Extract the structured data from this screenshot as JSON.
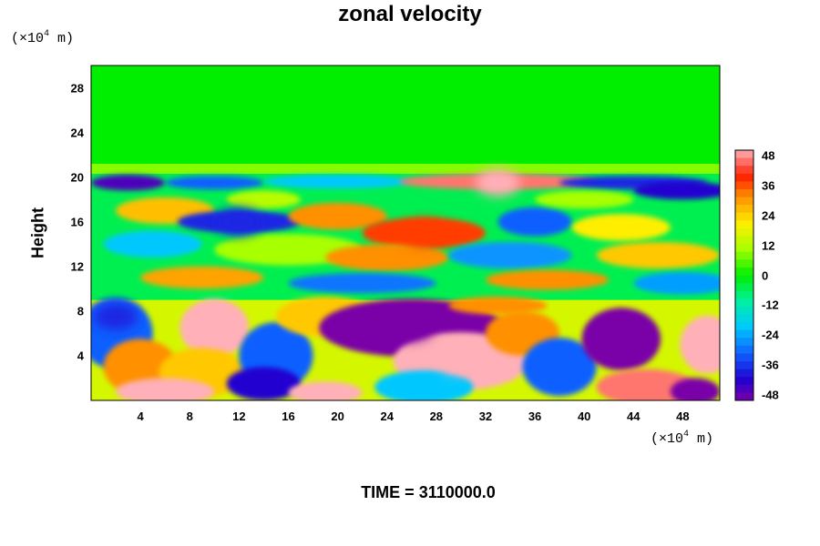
{
  "chart_data": {
    "type": "heatmap",
    "title": "zonal velocity",
    "ylabel": "Height",
    "y_unit": {
      "base": "(×10",
      "exp": "4",
      "rest": " m)"
    },
    "x_unit": {
      "base": "(×10",
      "exp": "4",
      "rest": " m)"
    },
    "footer": "TIME = 3110000.0",
    "x_ticks": [
      "4",
      "8",
      "12",
      "16",
      "20",
      "24",
      "28",
      "32",
      "36",
      "40",
      "44",
      "48"
    ],
    "y_ticks": [
      "4",
      "8",
      "12",
      "16",
      "20",
      "24",
      "28"
    ],
    "xlim": [
      0,
      51
    ],
    "ylim": [
      0,
      30
    ],
    "colorbar": {
      "ticks": [
        "48",
        "36",
        "24",
        "12",
        "0",
        "-12",
        "-24",
        "-36",
        "-48"
      ],
      "range": [
        -48,
        48
      ]
    },
    "field_features": [
      {
        "x": 26,
        "y": 6.5,
        "value": -48
      },
      {
        "x": 30,
        "y": 3.5,
        "value": 48
      },
      {
        "x": 10,
        "y": 6.5,
        "value": 48
      },
      {
        "x": 2,
        "y": 7.5,
        "value": -36
      },
      {
        "x": 43,
        "y": 5.5,
        "value": -48
      },
      {
        "x": 50,
        "y": 5,
        "value": 48
      },
      {
        "x": 33,
        "y": 19.5,
        "value": 48
      },
      {
        "x": 27,
        "y": 15,
        "value": 36
      },
      {
        "x": 12,
        "y": 16,
        "value": -36
      },
      {
        "x": 28,
        "y": 25,
        "value": 0
      }
    ]
  }
}
